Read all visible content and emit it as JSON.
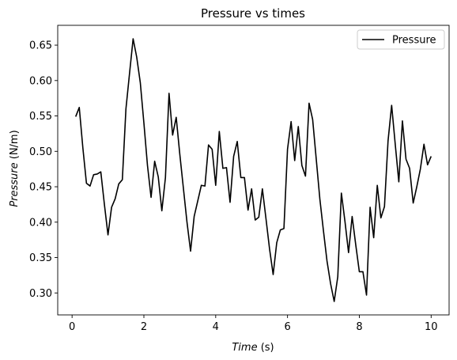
{
  "chart_data": {
    "type": "line",
    "title": "Pressure vs times",
    "xlabel_name": "Time",
    "xlabel_unit": " (s)",
    "ylabel_name": "Pressure",
    "ylabel_unit": " (N/m)",
    "xlim": [
      -0.4,
      10.5
    ],
    "ylim": [
      0.269,
      0.678
    ],
    "xticks": [
      0,
      2,
      4,
      6,
      8,
      10
    ],
    "xtick_labels": [
      "0",
      "2",
      "4",
      "6",
      "8",
      "10"
    ],
    "yticks": [
      0.3,
      0.35,
      0.4,
      0.45,
      0.5,
      0.55,
      0.6,
      0.65
    ],
    "ytick_labels": [
      "0.30",
      "0.35",
      "0.40",
      "0.45",
      "0.50",
      "0.55",
      "0.60",
      "0.65"
    ],
    "grid": false,
    "legend": "top-right",
    "series": [
      {
        "name": "Pressure",
        "color": "#000000",
        "x": [
          0.1,
          0.2,
          0.3,
          0.4,
          0.5,
          0.6,
          0.7,
          0.8,
          0.9,
          1.0,
          1.1,
          1.2,
          1.3,
          1.4,
          1.5,
          1.6,
          1.7,
          1.8,
          1.9,
          2.0,
          2.1,
          2.2,
          2.3,
          2.4,
          2.5,
          2.6,
          2.7,
          2.8,
          2.9,
          3.0,
          3.1,
          3.2,
          3.3,
          3.4,
          3.5,
          3.6,
          3.7,
          3.8,
          3.9,
          4.0,
          4.1,
          4.2,
          4.3,
          4.4,
          4.5,
          4.6,
          4.7,
          4.8,
          4.9,
          5.0,
          5.1,
          5.2,
          5.3,
          5.4,
          5.5,
          5.6,
          5.7,
          5.8,
          5.9,
          6.0,
          6.1,
          6.2,
          6.3,
          6.4,
          6.5,
          6.6,
          6.7,
          6.8,
          6.9,
          7.0,
          7.1,
          7.2,
          7.3,
          7.4,
          7.5,
          7.6,
          7.7,
          7.8,
          7.9,
          8.0,
          8.1,
          8.2,
          8.3,
          8.4,
          8.5,
          8.6,
          8.7,
          8.8,
          8.9,
          9.0,
          9.1,
          9.2,
          9.3,
          9.4,
          9.5,
          9.6,
          9.7,
          9.8,
          9.9,
          10.0
        ],
        "values": [
          0.549,
          0.562,
          0.505,
          0.455,
          0.451,
          0.467,
          0.468,
          0.471,
          0.425,
          0.382,
          0.421,
          0.433,
          0.454,
          0.46,
          0.56,
          0.61,
          0.659,
          0.633,
          0.597,
          0.54,
          0.48,
          0.435,
          0.486,
          0.464,
          0.416,
          0.463,
          0.582,
          0.523,
          0.548,
          0.496,
          0.448,
          0.4,
          0.359,
          0.408,
          0.43,
          0.452,
          0.451,
          0.509,
          0.503,
          0.452,
          0.528,
          0.476,
          0.477,
          0.428,
          0.493,
          0.514,
          0.463,
          0.463,
          0.417,
          0.447,
          0.403,
          0.407,
          0.447,
          0.405,
          0.362,
          0.326,
          0.371,
          0.389,
          0.391,
          0.503,
          0.542,
          0.487,
          0.535,
          0.48,
          0.465,
          0.568,
          0.545,
          0.489,
          0.433,
          0.388,
          0.345,
          0.313,
          0.288,
          0.323,
          0.441,
          0.401,
          0.357,
          0.408,
          0.368,
          0.33,
          0.33,
          0.297,
          0.421,
          0.378,
          0.452,
          0.406,
          0.422,
          0.515,
          0.565,
          0.51,
          0.457,
          0.543,
          0.489,
          0.476,
          0.427,
          0.45,
          0.475,
          0.51,
          0.481,
          0.493
        ]
      }
    ]
  }
}
